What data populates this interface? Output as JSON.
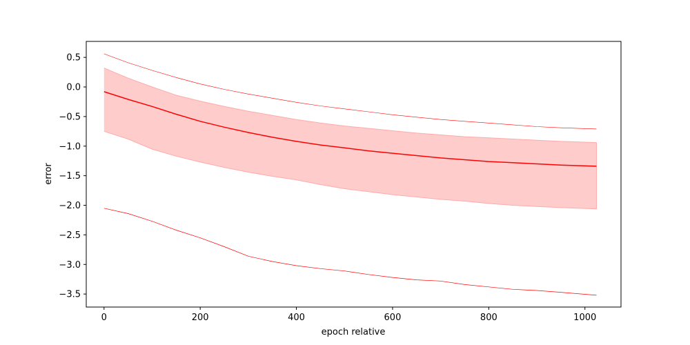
{
  "chart_data": {
    "type": "line",
    "title": "",
    "xlabel": "epoch relative",
    "ylabel": "error",
    "xlim": [
      -37,
      1075
    ],
    "ylim": [
      -3.72,
      0.77
    ],
    "x_ticks": [
      0,
      200,
      400,
      600,
      800,
      1000
    ],
    "x_tick_labels": [
      "0",
      "200",
      "400",
      "600",
      "800",
      "1000"
    ],
    "y_ticks": [
      0.5,
      0.0,
      -0.5,
      -1.0,
      -1.5,
      -2.0,
      -2.5,
      -3.0,
      -3.5
    ],
    "y_tick_labels": [
      "0.5",
      "0.0",
      "−0.5",
      "−1.0",
      "−1.5",
      "−2.0",
      "−2.5",
      "−3.0",
      "−3.5"
    ],
    "grid": false,
    "legend": "none",
    "colors": {
      "mean_line": "#ff0000",
      "band_fill": "#ffcccc",
      "band_edge": "#ffaaaa",
      "max_line": "#ff0000",
      "min_line": "#ff0000"
    },
    "x": [
      0,
      50,
      100,
      150,
      200,
      250,
      300,
      350,
      400,
      450,
      500,
      550,
      600,
      650,
      700,
      750,
      800,
      850,
      900,
      950,
      1024
    ],
    "series": [
      {
        "role": "mean",
        "values": [
          -0.08,
          -0.21,
          -0.33,
          -0.46,
          -0.58,
          -0.68,
          -0.77,
          -0.85,
          -0.92,
          -0.98,
          -1.03,
          -1.08,
          -1.12,
          -1.16,
          -1.2,
          -1.23,
          -1.26,
          -1.28,
          -1.3,
          -1.32,
          -1.34
        ]
      },
      {
        "role": "band_upper",
        "values": [
          0.32,
          0.15,
          0.0,
          -0.14,
          -0.24,
          -0.33,
          -0.41,
          -0.48,
          -0.55,
          -0.61,
          -0.66,
          -0.7,
          -0.74,
          -0.78,
          -0.81,
          -0.84,
          -0.86,
          -0.88,
          -0.9,
          -0.92,
          -0.94
        ]
      },
      {
        "role": "band_lower",
        "values": [
          -0.75,
          -0.88,
          -1.05,
          -1.17,
          -1.27,
          -1.36,
          -1.44,
          -1.51,
          -1.57,
          -1.65,
          -1.72,
          -1.77,
          -1.82,
          -1.86,
          -1.9,
          -1.93,
          -1.97,
          -2.0,
          -2.02,
          -2.04,
          -2.06
        ]
      },
      {
        "role": "max",
        "values": [
          0.56,
          0.41,
          0.28,
          0.16,
          0.05,
          -0.04,
          -0.12,
          -0.19,
          -0.26,
          -0.32,
          -0.37,
          -0.42,
          -0.47,
          -0.51,
          -0.55,
          -0.58,
          -0.61,
          -0.64,
          -0.67,
          -0.69,
          -0.71
        ]
      },
      {
        "role": "min",
        "values": [
          -2.05,
          -2.14,
          -2.27,
          -2.42,
          -2.55,
          -2.7,
          -2.86,
          -2.95,
          -3.02,
          -3.07,
          -3.11,
          -3.17,
          -3.22,
          -3.26,
          -3.28,
          -3.34,
          -3.38,
          -3.42,
          -3.44,
          -3.47,
          -3.52
        ]
      }
    ]
  }
}
